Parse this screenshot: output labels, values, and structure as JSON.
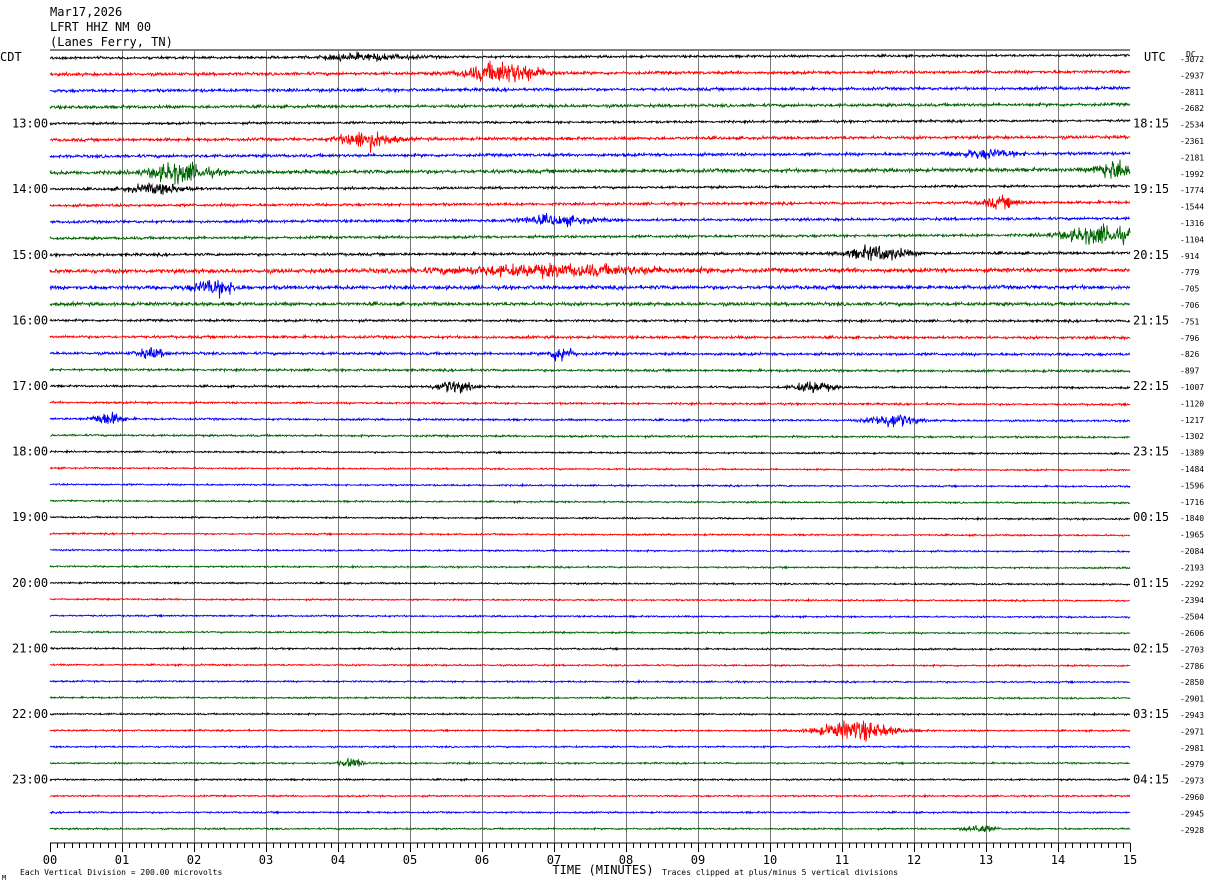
{
  "header": {
    "date": "Mar17,2026",
    "station": "LFRT HHZ NM 00",
    "location": "(Lanes Ferry, TN)"
  },
  "left_zone_label": "CDT",
  "right_zone_label": "UTC",
  "dc_label": "DC",
  "xlabel": "TIME (MINUTES)",
  "footer": {
    "scale_note": "Each Vertical Division =  200.00 microvolts",
    "clip_note": "Traces clipped at plus/minus 5 vertical divisions",
    "corner_mark": "M"
  },
  "colors": {
    "trace_cycle": [
      "#000000",
      "#ff0000",
      "#0000ff",
      "#006400"
    ],
    "grid": "#000000"
  },
  "chart_data": {
    "type": "line",
    "title": "LFRT HHZ NM 00",
    "xlabel": "TIME (MINUTES)",
    "xlim": [
      0,
      15
    ],
    "x_ticks": [
      "00",
      "01",
      "02",
      "03",
      "04",
      "05",
      "06",
      "07",
      "08",
      "09",
      "10",
      "11",
      "12",
      "13",
      "14",
      "15"
    ],
    "trace_count": 48,
    "minutes_per_trace": 15,
    "left_time_labels": [
      {
        "trace": 4,
        "text": "13:00"
      },
      {
        "trace": 8,
        "text": "14:00"
      },
      {
        "trace": 12,
        "text": "15:00"
      },
      {
        "trace": 16,
        "text": "16:00"
      },
      {
        "trace": 20,
        "text": "17:00"
      },
      {
        "trace": 24,
        "text": "18:00"
      },
      {
        "trace": 28,
        "text": "19:00"
      },
      {
        "trace": 32,
        "text": "20:00"
      },
      {
        "trace": 36,
        "text": "21:00"
      },
      {
        "trace": 40,
        "text": "22:00"
      },
      {
        "trace": 44,
        "text": "23:00"
      }
    ],
    "right_time_labels": [
      {
        "trace": 4,
        "text": "18:15"
      },
      {
        "trace": 8,
        "text": "19:15"
      },
      {
        "trace": 12,
        "text": "20:15"
      },
      {
        "trace": 16,
        "text": "21:15"
      },
      {
        "trace": 20,
        "text": "22:15"
      },
      {
        "trace": 24,
        "text": "23:15"
      },
      {
        "trace": 28,
        "text": "00:15"
      },
      {
        "trace": 32,
        "text": "01:15"
      },
      {
        "trace": 36,
        "text": "02:15"
      },
      {
        "trace": 40,
        "text": "03:15"
      },
      {
        "trace": 44,
        "text": "04:15"
      }
    ],
    "dc_offsets": [
      "-3072",
      "-2937",
      "-2811",
      "-2682",
      "-2534",
      "-2361",
      "-2181",
      "-1992",
      "-1774",
      "-1544",
      "-1316",
      "-1104",
      "-914",
      "-779",
      "-705",
      "-706",
      "-751",
      "-796",
      "-826",
      "-897",
      "-1007",
      "-1120",
      "-1217",
      "-1302",
      "-1389",
      "-1484",
      "-1596",
      "-1716",
      "-1840",
      "-1965",
      "-2084",
      "-2193",
      "-2292",
      "-2394",
      "-2504",
      "-2606",
      "-2703",
      "-2786",
      "-2850",
      "-2901",
      "-2943",
      "-2971",
      "-2981",
      "-2979",
      "-2973",
      "-2960",
      "-2945",
      "-2928"
    ],
    "trace_drift_divisions": [
      0.9,
      0.9,
      0.9,
      0.9,
      1.0,
      1.0,
      1.0,
      1.1,
      1.1,
      1.1,
      1.2,
      1.2,
      0.6,
      0.4,
      0.1,
      0.0,
      -0.2,
      -0.3,
      -0.4,
      -0.5,
      -0.6,
      -0.7,
      -0.7,
      -0.7,
      -0.7,
      -0.7,
      -0.7,
      -0.7,
      -0.6,
      -0.6,
      -0.5,
      -0.5,
      -0.5,
      -0.5,
      -0.5,
      -0.4,
      -0.3,
      -0.3,
      -0.3,
      -0.2,
      -0.1,
      -0.1,
      0.0,
      0.0,
      0.0,
      0.0,
      0.0,
      0.0
    ],
    "trace_noise_divisions": [
      0.35,
      0.45,
      0.45,
      0.45,
      0.35,
      0.45,
      0.45,
      0.55,
      0.35,
      0.4,
      0.4,
      0.4,
      0.4,
      0.6,
      0.55,
      0.5,
      0.35,
      0.4,
      0.4,
      0.35,
      0.3,
      0.3,
      0.3,
      0.3,
      0.25,
      0.25,
      0.25,
      0.25,
      0.25,
      0.25,
      0.25,
      0.25,
      0.25,
      0.25,
      0.25,
      0.25,
      0.25,
      0.25,
      0.25,
      0.25,
      0.25,
      0.25,
      0.25,
      0.25,
      0.25,
      0.25,
      0.25,
      0.25
    ],
    "events": [
      {
        "trace": 0,
        "minute": 4.4,
        "amp": 1.0,
        "dur": 1.2
      },
      {
        "trace": 1,
        "minute": 6.3,
        "amp": 3.2,
        "dur": 1.0
      },
      {
        "trace": 5,
        "minute": 4.4,
        "amp": 2.8,
        "dur": 0.7
      },
      {
        "trace": 6,
        "minute": 13.0,
        "amp": 1.2,
        "dur": 0.8
      },
      {
        "trace": 7,
        "minute": 1.8,
        "amp": 3.0,
        "dur": 0.8
      },
      {
        "trace": 7,
        "minute": 14.8,
        "amp": 3.0,
        "dur": 0.5
      },
      {
        "trace": 8,
        "minute": 1.5,
        "amp": 1.5,
        "dur": 0.8
      },
      {
        "trace": 9,
        "minute": 13.2,
        "amp": 1.6,
        "dur": 0.5
      },
      {
        "trace": 10,
        "minute": 7.0,
        "amp": 1.4,
        "dur": 1.0
      },
      {
        "trace": 11,
        "minute": 14.6,
        "amp": 2.8,
        "dur": 1.0
      },
      {
        "trace": 12,
        "minute": 11.5,
        "amp": 2.2,
        "dur": 0.8
      },
      {
        "trace": 13,
        "minute": 7.0,
        "amp": 1.6,
        "dur": 3.0
      },
      {
        "trace": 14,
        "minute": 2.3,
        "amp": 2.2,
        "dur": 0.6
      },
      {
        "trace": 18,
        "minute": 7.1,
        "amp": 2.6,
        "dur": 0.3
      },
      {
        "trace": 18,
        "minute": 1.4,
        "amp": 1.4,
        "dur": 0.4
      },
      {
        "trace": 20,
        "minute": 5.6,
        "amp": 1.8,
        "dur": 0.5
      },
      {
        "trace": 20,
        "minute": 10.6,
        "amp": 1.8,
        "dur": 0.5
      },
      {
        "trace": 22,
        "minute": 0.8,
        "amp": 2.0,
        "dur": 0.4
      },
      {
        "trace": 22,
        "minute": 11.7,
        "amp": 2.2,
        "dur": 0.6
      },
      {
        "trace": 41,
        "minute": 11.2,
        "amp": 3.0,
        "dur": 1.0
      },
      {
        "trace": 43,
        "minute": 4.2,
        "amp": 1.4,
        "dur": 0.3
      },
      {
        "trace": 47,
        "minute": 12.9,
        "amp": 1.2,
        "dur": 0.4
      }
    ]
  }
}
